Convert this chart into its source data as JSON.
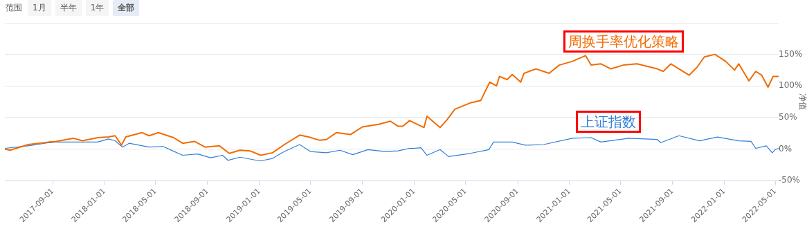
{
  "chart_data": {
    "type": "line",
    "ylabel": "净值",
    "annotations": [
      "范围",
      "1月",
      "半年",
      "1年",
      "全部"
    ],
    "xlim": [
      "2017-05-11",
      "2022-05-09"
    ],
    "xticks": [
      "2017-09-01",
      "2018-01-01",
      "2018-05-01",
      "2018-09-01",
      "2019-01-01",
      "2019-05-01",
      "2019-09-01",
      "2020-01-01",
      "2020-05-01",
      "2020-09-01",
      "2021-01-01",
      "2021-05-01",
      "2021-09-01",
      "2022-01-01",
      "2022-05-01"
    ],
    "ylim": [
      -50,
      200
    ],
    "yticks": [
      {
        "value": -50,
        "label": "-50%"
      },
      {
        "value": 0,
        "label": "0%"
      },
      {
        "value": 50,
        "label": "50%"
      },
      {
        "value": 100,
        "label": "100%"
      },
      {
        "value": 150,
        "label": "150%"
      },
      {
        "value": 200,
        "label": null
      }
    ],
    "grid": "y",
    "legend": false,
    "marker": "none",
    "line_style": "solid",
    "series": [
      {
        "name": "周换手率优化策略",
        "color": "#f26b00",
        "x": [
          "2017-05-11",
          "2017-05-23",
          "2017-07-05",
          "2017-08-23",
          "2017-09-09",
          "2017-10-19",
          "2017-11-10",
          "2017-12-16",
          "2018-01-10",
          "2018-01-26",
          "2018-02-10",
          "2018-02-20",
          "2018-03-30",
          "2018-04-16",
          "2018-05-08",
          "2018-06-13",
          "2018-07-04",
          "2018-08-01",
          "2018-08-26",
          "2018-09-29",
          "2018-10-22",
          "2018-11-16",
          "2018-12-10",
          "2019-01-04",
          "2019-02-01",
          "2019-03-01",
          "2019-04-06",
          "2019-04-27",
          "2019-05-22",
          "2019-06-08",
          "2019-07-02",
          "2019-08-04",
          "2019-09-01",
          "2019-10-09",
          "2019-11-06",
          "2019-11-24",
          "2019-12-05",
          "2019-12-21",
          "2020-01-24",
          "2020-01-31",
          "2020-03-02",
          "2020-03-18",
          "2020-04-06",
          "2020-05-12",
          "2020-06-06",
          "2020-06-27",
          "2020-07-13",
          "2020-07-20",
          "2020-08-07",
          "2020-08-19",
          "2020-09-08",
          "2020-09-16",
          "2020-10-14",
          "2020-11-14",
          "2020-12-08",
          "2021-01-08",
          "2021-02-08",
          "2021-02-21",
          "2021-03-16",
          "2021-04-09",
          "2021-05-08",
          "2021-06-09",
          "2021-07-27",
          "2021-08-10",
          "2021-08-28",
          "2021-09-16",
          "2021-10-10",
          "2021-10-28",
          "2021-11-15",
          "2021-12-10",
          "2022-01-04",
          "2022-01-25",
          "2022-02-04",
          "2022-02-28",
          "2022-03-16",
          "2022-03-30",
          "2022-04-14",
          "2022-04-26",
          "2022-05-09"
        ],
        "values": [
          0,
          -2,
          7,
          11,
          12,
          17,
          13,
          18,
          19,
          21,
          6,
          19,
          26,
          21,
          26,
          18,
          9,
          12,
          3,
          5,
          -7,
          -2,
          -3,
          -10,
          -6,
          7,
          22,
          19,
          14,
          15,
          26,
          23,
          35,
          39,
          44,
          36,
          36,
          45,
          34,
          52,
          34,
          46,
          63,
          73,
          77,
          106,
          100,
          115,
          110,
          118,
          106,
          120,
          127,
          120,
          133,
          139,
          148,
          133,
          135,
          127,
          133,
          135,
          127,
          123,
          135,
          127,
          117,
          129,
          146,
          150,
          139,
          125,
          135,
          108,
          123,
          117,
          98,
          115,
          115
        ]
      },
      {
        "name": "上证指数",
        "color": "#2f7ed8",
        "x": [
          "2017-05-11",
          "2017-07-05",
          "2017-08-23",
          "2017-09-09",
          "2017-10-19",
          "2017-11-13",
          "2017-12-16",
          "2018-01-10",
          "2018-01-26",
          "2018-02-12",
          "2018-02-28",
          "2018-04-16",
          "2018-05-19",
          "2018-07-04",
          "2018-08-09",
          "2018-09-08",
          "2018-10-06",
          "2018-10-19",
          "2018-11-16",
          "2019-01-03",
          "2019-02-01",
          "2019-03-01",
          "2019-04-06",
          "2019-05-01",
          "2019-06-08",
          "2019-07-10",
          "2019-08-09",
          "2019-09-14",
          "2019-10-25",
          "2019-11-24",
          "2019-12-21",
          "2019-12-30",
          "2020-01-17",
          "2020-01-31",
          "2020-03-02",
          "2020-03-22",
          "2020-05-12",
          "2020-06-25",
          "2020-07-06",
          "2020-08-19",
          "2020-09-19",
          "2020-11-01",
          "2021-01-08",
          "2021-02-21",
          "2021-03-16",
          "2021-05-21",
          "2021-07-27",
          "2021-08-04",
          "2021-09-16",
          "2021-11-04",
          "2021-12-16",
          "2022-02-04",
          "2022-03-05",
          "2022-03-16",
          "2022-04-10",
          "2022-04-24",
          "2022-05-01",
          "2022-05-09"
        ],
        "values": [
          1,
          5,
          10,
          11,
          11,
          11,
          11,
          16,
          13,
          3,
          9,
          3,
          4,
          -10,
          -8,
          -14,
          -10,
          -18,
          -13,
          -19,
          -15,
          -4,
          7,
          -4,
          -6,
          -2,
          -9,
          -1,
          -4,
          -3,
          1,
          1,
          2,
          -10,
          -1,
          -12,
          -7,
          -1,
          11,
          11,
          6,
          7,
          17,
          18,
          11,
          17,
          15,
          10,
          21,
          13,
          19,
          13,
          12,
          1,
          5,
          -6,
          -1,
          1
        ]
      }
    ]
  }
}
